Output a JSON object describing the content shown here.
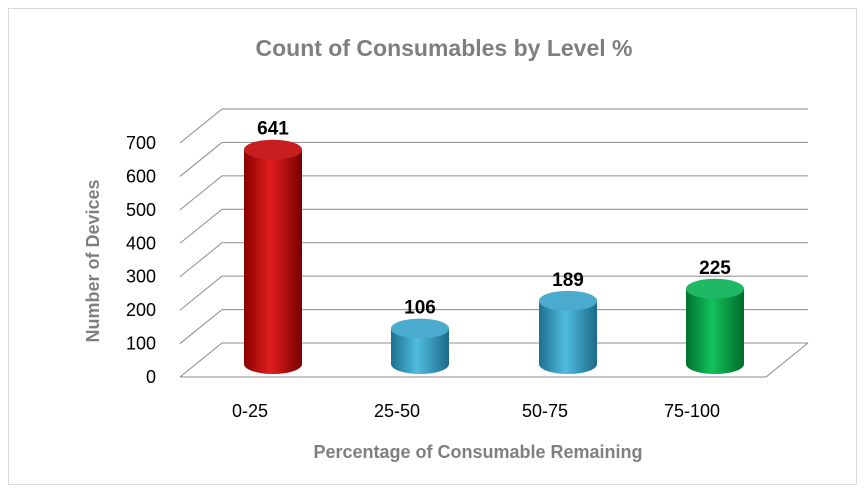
{
  "chart_data": {
    "type": "bar",
    "style": "3d-cylinder",
    "title": "Count of Consumables by Level %",
    "xlabel": "Percentage of Consumable Remaining",
    "ylabel": "Number of Devices",
    "categories": [
      "0-25",
      "25-50",
      "50-75",
      "75-100"
    ],
    "values": [
      641,
      106,
      189,
      225
    ],
    "colors": [
      "#c00000",
      "#31a0c8",
      "#31a0c8",
      "#00b050"
    ],
    "ylim": [
      0,
      700
    ],
    "yticks": [
      "0",
      "100",
      "200",
      "300",
      "400",
      "500",
      "600",
      "700"
    ],
    "grid": true,
    "legend": "none"
  }
}
